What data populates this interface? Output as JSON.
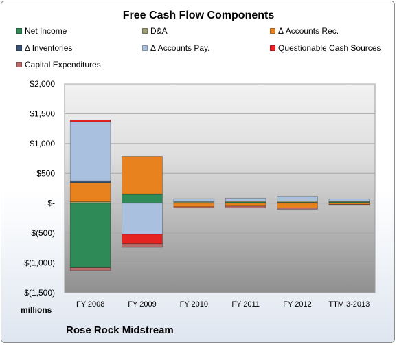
{
  "chart_data": {
    "type": "bar",
    "stacked": true,
    "title": "Free Cash Flow Components",
    "ylabel": "millions",
    "caption": "Rose Rock Midstream",
    "categories": [
      "FY 2008",
      "FY 2009",
      "FY 2010",
      "FY 2011",
      "FY 2012",
      "TTM 3-2013"
    ],
    "ylim": [
      -1500,
      2000
    ],
    "y_ticks": [
      2000,
      1500,
      1000,
      500,
      0,
      -500,
      -1000,
      -1500
    ],
    "y_tick_labels": [
      "$2,000",
      "$1,500",
      "$1,000",
      "$500",
      "$-",
      "$(500)",
      "$(1,000)",
      "$(1,500)"
    ],
    "grid": true,
    "legend_position": "top",
    "series": [
      {
        "name": "Net Income",
        "color": "#2e8b57",
        "values": [
          -1080,
          150,
          10,
          20,
          15,
          20
        ]
      },
      {
        "name": "D&A",
        "color": "#9c9c6e",
        "values": [
          25,
          5,
          15,
          15,
          20,
          10
        ]
      },
      {
        "name": "Δ Accounts Rec.",
        "color": "#e8821e",
        "values": [
          320,
          630,
          -60,
          -50,
          -80,
          -20
        ]
      },
      {
        "name": "Δ Inventories",
        "color": "#3a5578",
        "values": [
          30,
          0,
          0,
          0,
          0,
          0
        ]
      },
      {
        "name": "Δ Accounts Pay.",
        "color": "#a9c1df",
        "values": [
          990,
          -520,
          50,
          50,
          80,
          40
        ]
      },
      {
        "name": "Questionable Cash Sources",
        "color": "#e52323",
        "values": [
          30,
          -160,
          0,
          0,
          0,
          0
        ]
      },
      {
        "name": "Capital Expenditures",
        "color": "#b86b6b",
        "values": [
          -50,
          -60,
          -20,
          -30,
          -20,
          -15
        ]
      }
    ]
  }
}
